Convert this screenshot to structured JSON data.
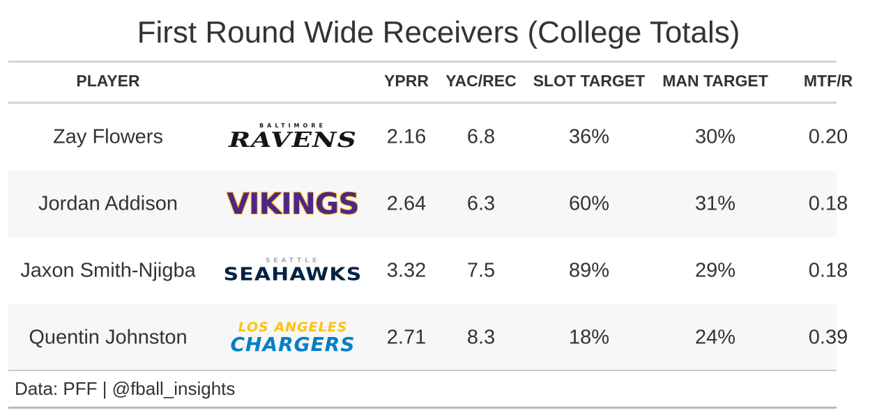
{
  "title": "First Round Wide Receivers (College Totals)",
  "columns": [
    "PLAYER",
    "YPRR",
    "YAC/REC",
    "SLOT TARGET",
    "MAN TARGET",
    "MTF/R"
  ],
  "rows": [
    {
      "player": "Zay Flowers",
      "team_logo": {
        "icon": "ravens-logo",
        "sub": "BALTIMORE",
        "main": "RAVENS"
      },
      "yprr": "2.16",
      "yac_rec": "6.8",
      "slot_target": "36%",
      "man_target": "30%",
      "mtf_r": "0.20"
    },
    {
      "player": "Jordan Addison",
      "team_logo": {
        "icon": "vikings-logo",
        "sub": "",
        "main": "VIKINGS"
      },
      "yprr": "2.64",
      "yac_rec": "6.3",
      "slot_target": "60%",
      "man_target": "31%",
      "mtf_r": "0.18"
    },
    {
      "player": "Jaxon Smith-Njigba",
      "team_logo": {
        "icon": "seahawks-logo",
        "sub": "SEATTLE",
        "main": "SEAHAWKS"
      },
      "yprr": "3.32",
      "yac_rec": "7.5",
      "slot_target": "89%",
      "man_target": "29%",
      "mtf_r": "0.18"
    },
    {
      "player": "Quentin Johnston",
      "team_logo": {
        "icon": "chargers-logo",
        "sub": "LOS ANGELES",
        "main": "CHARGERS"
      },
      "yprr": "2.71",
      "yac_rec": "8.3",
      "slot_target": "18%",
      "man_target": "24%",
      "mtf_r": "0.39"
    }
  ],
  "footer": "Data: PFF | @fball_insights",
  "chart_data": {
    "type": "table",
    "title": "First Round Wide Receivers (College Totals)",
    "columns": [
      "PLAYER",
      "YPRR",
      "YAC/REC",
      "SLOT TARGET",
      "MAN TARGET",
      "MTF/R"
    ],
    "rows": [
      [
        "Zay Flowers",
        2.16,
        6.8,
        "36%",
        "30%",
        0.2
      ],
      [
        "Jordan Addison",
        2.64,
        6.3,
        "60%",
        "31%",
        0.18
      ],
      [
        "Jaxon Smith-Njigba",
        3.32,
        7.5,
        "89%",
        "29%",
        0.18
      ],
      [
        "Quentin Johnston",
        2.71,
        8.3,
        "18%",
        "24%",
        0.39
      ]
    ],
    "source": "Data: PFF | @fball_insights"
  },
  "colors": {
    "text": "#333333",
    "rule": "#d3d3d3",
    "stripe": "#f7f7f7",
    "ravens": "#141414",
    "vikings": "#4f2683",
    "vikings_outline": "#ffc62f",
    "seahawks": "#002244",
    "seahawks_sub": "#a5acaf",
    "chargers_blue": "#0080c6",
    "chargers_gold": "#ffc20e"
  }
}
